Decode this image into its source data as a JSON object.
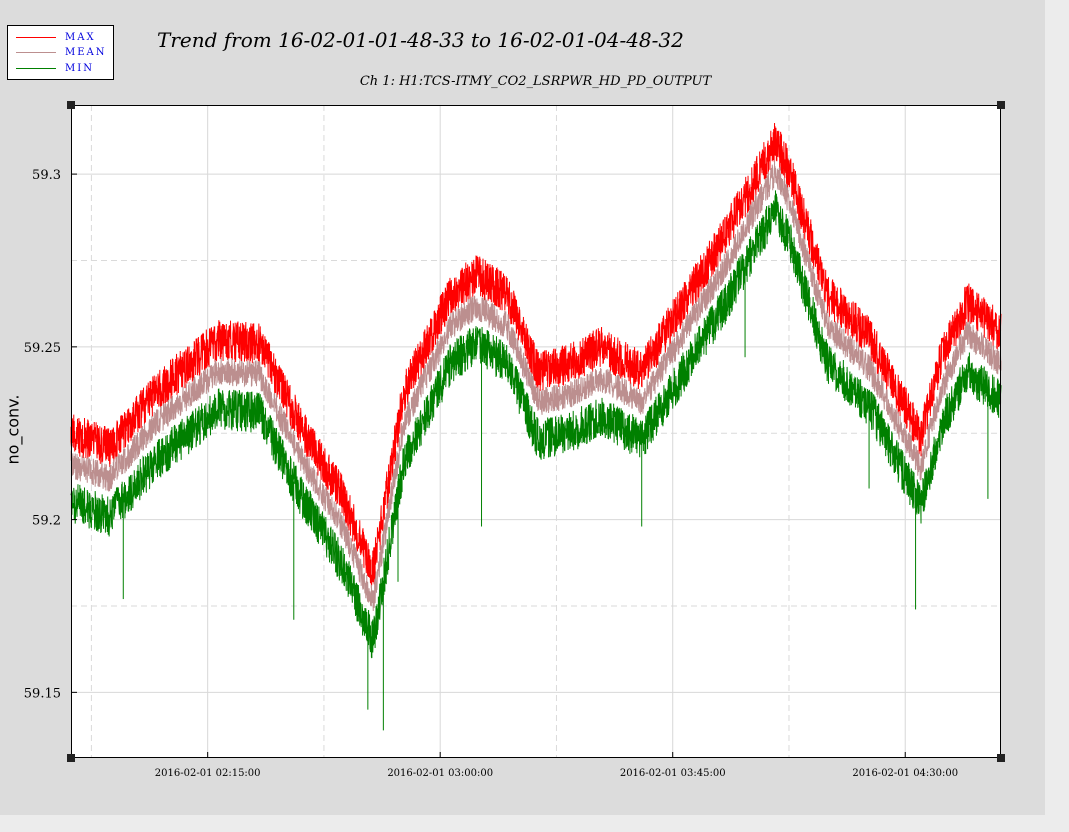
{
  "chart_data": {
    "type": "line",
    "title": "Trend from 16-02-01-01-48-33 to 16-02-01-04-48-32",
    "subtitle": "Ch 1: H1:TCS-ITMY_CO2_LSRPWR_HD_PD_OUTPUT",
    "ylabel": "no_conv.",
    "xlabel": "",
    "x_range": [
      "2016-02-01 01:48:33",
      "2016-02-01 04:48:32"
    ],
    "ylim": [
      59.131,
      59.32
    ],
    "y_ticks": [
      {
        "value": 59.15,
        "label": "59.15"
      },
      {
        "value": 59.2,
        "label": "59.2"
      },
      {
        "value": 59.25,
        "label": "59.25"
      },
      {
        "value": 59.3,
        "label": "59.3"
      }
    ],
    "x_ticks": [
      {
        "time": "2016-02-01 02:15:00",
        "label": "2016-02-01 02:15:00"
      },
      {
        "time": "2016-02-01 03:00:00",
        "label": "2016-02-01 03:00:00"
      },
      {
        "time": "2016-02-01 03:45:00",
        "label": "2016-02-01 03:45:00"
      },
      {
        "time": "2016-02-01 04:30:00",
        "label": "2016-02-01 04:30:00"
      }
    ],
    "grid": true,
    "legend_position": "top-left",
    "series_style": {
      "MAX": "#ff0000",
      "MEAN": "#bc8f8f",
      "MIN": "#008000"
    },
    "mean_profile": {
      "x": [
        "2016-02-01 01:48:33",
        "2016-02-01 01:56:00",
        "2016-02-01 02:05:00",
        "2016-02-01 02:17:00",
        "2016-02-01 02:25:00",
        "2016-02-01 02:33:00",
        "2016-02-01 02:41:00",
        "2016-02-01 02:47:00",
        "2016-02-01 02:53:00",
        "2016-02-01 03:02:00",
        "2016-02-01 03:07:00",
        "2016-02-01 03:13:00",
        "2016-02-01 03:19:00",
        "2016-02-01 03:25:00",
        "2016-02-01 03:31:00",
        "2016-02-01 03:39:00",
        "2016-02-01 03:46:00",
        "2016-02-01 03:55:00",
        "2016-02-01 04:05:00",
        "2016-02-01 04:08:00",
        "2016-02-01 04:15:00",
        "2016-02-01 04:23:00",
        "2016-02-01 04:33:00",
        "2016-02-01 04:37:00",
        "2016-02-01 04:42:00",
        "2016-02-01 04:48:32"
      ],
      "y": [
        59.216,
        59.212,
        59.228,
        59.243,
        59.242,
        59.218,
        59.198,
        59.176,
        59.228,
        59.256,
        59.262,
        59.256,
        59.234,
        59.236,
        59.241,
        59.234,
        59.251,
        59.273,
        59.301,
        59.29,
        59.256,
        59.244,
        59.215,
        59.238,
        59.254,
        59.245
      ]
    },
    "series": [
      {
        "name": "MAX",
        "offset_from_mean": 0.009,
        "noise": 0.006
      },
      {
        "name": "MEAN",
        "offset_from_mean": 0.0,
        "noise": 0.004
      },
      {
        "name": "MIN",
        "offset_from_mean": -0.011,
        "noise": 0.006
      }
    ],
    "spikes_min": [
      {
        "time": "2016-02-01 01:58:40",
        "value": 59.177
      },
      {
        "time": "2016-02-01 02:31:40",
        "value": 59.171
      },
      {
        "time": "2016-02-01 02:46:00",
        "value": 59.145
      },
      {
        "time": "2016-02-01 02:49:00",
        "value": 59.139
      },
      {
        "time": "2016-02-01 02:51:50",
        "value": 59.182
      },
      {
        "time": "2016-02-01 03:08:00",
        "value": 59.198
      },
      {
        "time": "2016-02-01 03:39:00",
        "value": 59.198
      },
      {
        "time": "2016-02-01 03:59:00",
        "value": 59.247
      },
      {
        "time": "2016-02-01 04:23:00",
        "value": 59.209
      },
      {
        "time": "2016-02-01 04:32:00",
        "value": 59.174
      },
      {
        "time": "2016-02-01 04:46:00",
        "value": 59.206
      }
    ]
  },
  "legend": {
    "items": [
      {
        "label": "MAX",
        "color": "#ff0000"
      },
      {
        "label": "MEAN",
        "color": "#bc8f8f"
      },
      {
        "label": "MIN",
        "color": "#008000"
      }
    ]
  }
}
